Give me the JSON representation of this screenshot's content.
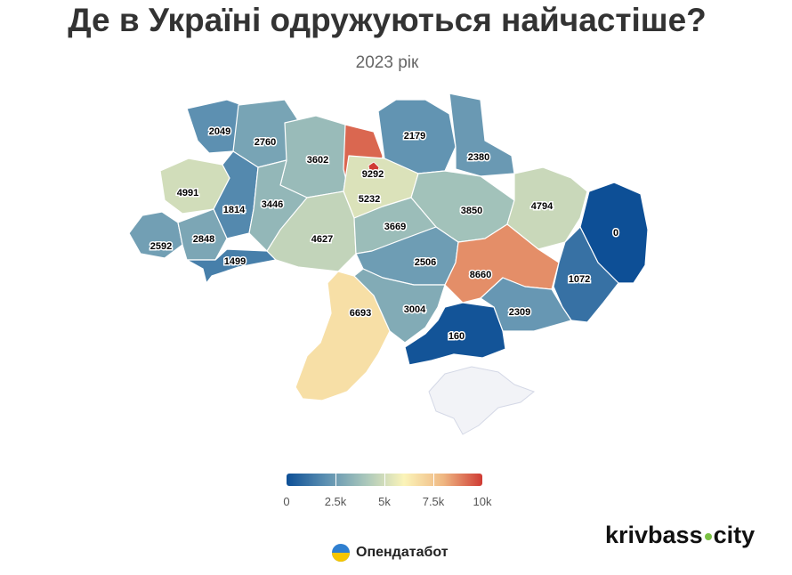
{
  "title": "Де в Україні одружуються найчастіше?",
  "subtitle": "2023 рік",
  "chart_data": {
    "type": "choropleth",
    "title": "Де в Україні одружуються найчастіше?",
    "subtitle": "2023 рік",
    "colorscale": {
      "min": 0,
      "max": 10000,
      "stops": [
        "#0d4f96",
        "#5b8fb1",
        "#a8c6bb",
        "#fbf4b9",
        "#efb782",
        "#cf3b34"
      ]
    },
    "regions": [
      {
        "label": "2049",
        "value": 2049
      },
      {
        "label": "2760",
        "value": 2760
      },
      {
        "label": "3602",
        "value": 3602
      },
      {
        "label": "9292",
        "value": 9292
      },
      {
        "label": "2179",
        "value": 2179
      },
      {
        "label": "2380",
        "value": 2380
      },
      {
        "label": "4991",
        "value": 4991
      },
      {
        "label": "1814",
        "value": 1814
      },
      {
        "label": "3446",
        "value": 3446
      },
      {
        "label": "5232",
        "value": 5232
      },
      {
        "label": "3850",
        "value": 3850
      },
      {
        "label": "4794",
        "value": 4794
      },
      {
        "label": "0",
        "value": 0
      },
      {
        "label": "2592",
        "value": 2592
      },
      {
        "label": "2848",
        "value": 2848
      },
      {
        "label": "1499",
        "value": 1499
      },
      {
        "label": "4627",
        "value": 4627
      },
      {
        "label": "3669",
        "value": 3669
      },
      {
        "label": "2506",
        "value": 2506
      },
      {
        "label": "8660",
        "value": 8660
      },
      {
        "label": "1072",
        "value": 1072
      },
      {
        "label": "6693",
        "value": 6693
      },
      {
        "label": "3004",
        "value": 3004
      },
      {
        "label": "2309",
        "value": 2309
      },
      {
        "label": "160",
        "value": 160
      }
    ],
    "no_data_color": "#f2f3f7"
  },
  "legend": {
    "ticks": [
      {
        "label": "0",
        "value": 0
      },
      {
        "label": "2.5k",
        "value": 2500
      },
      {
        "label": "5k",
        "value": 5000
      },
      {
        "label": "7.5k",
        "value": 7500
      },
      {
        "label": "10k",
        "value": 10000
      }
    ]
  },
  "source": {
    "name": "Опендатабот",
    "icon": "opendatabot-logo-icon"
  },
  "brand": {
    "name_left": "krivbass",
    "name_right": "city"
  }
}
